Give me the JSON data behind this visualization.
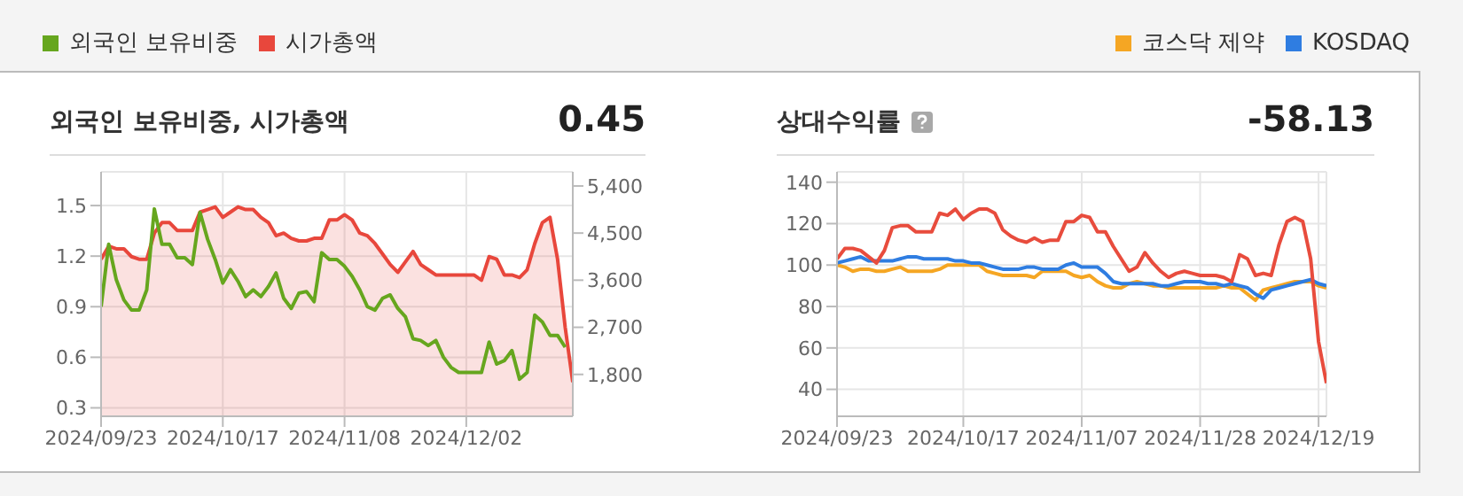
{
  "chart_data": [
    {
      "type": "line",
      "title": "외국인 보유비중, 시가총액",
      "annotations": [
        "0.45"
      ],
      "categories": [
        "2024/09/23",
        null,
        null,
        null,
        null,
        null,
        null,
        null,
        null,
        null,
        null,
        null,
        null,
        null,
        null,
        null,
        "2024/10/17",
        null,
        null,
        null,
        null,
        null,
        null,
        null,
        null,
        null,
        null,
        null,
        null,
        null,
        null,
        null,
        "2024/11/08",
        null,
        null,
        null,
        null,
        null,
        null,
        null,
        null,
        null,
        null,
        null,
        null,
        null,
        null,
        null,
        "2024/12/02",
        null,
        null,
        null,
        null,
        null,
        null,
        null,
        null,
        null,
        null,
        null,
        null,
        null,
        null
      ],
      "series": [
        {
          "name": "외국인 보유비중",
          "color": "#66a61e",
          "values": [
            0.9,
            1.27,
            1.06,
            0.94,
            0.88,
            0.88,
            1.0,
            1.48,
            1.27,
            1.27,
            1.19,
            1.19,
            1.15,
            1.46,
            1.3,
            1.18,
            1.04,
            1.12,
            1.05,
            0.96,
            1.0,
            0.96,
            1.02,
            1.1,
            0.95,
            0.89,
            0.98,
            0.99,
            0.93,
            1.22,
            1.18,
            1.18,
            1.14,
            1.08,
            1.0,
            0.9,
            0.88,
            0.95,
            0.97,
            0.89,
            0.84,
            0.71,
            0.7,
            0.67,
            0.7,
            0.6,
            0.54,
            0.51,
            0.51,
            0.51,
            0.51,
            0.69,
            0.56,
            0.58,
            0.64,
            0.47,
            0.51,
            0.85,
            0.81,
            0.73,
            0.73,
            0.66,
            null
          ]
        },
        {
          "name": "시가총액",
          "type": "area",
          "axis": "y2",
          "color": "#e8473c",
          "values": [
            4000,
            4250,
            4200,
            4200,
            4050,
            4000,
            4000,
            4500,
            4700,
            4700,
            4550,
            4550,
            4550,
            4900,
            4950,
            5000,
            4800,
            4900,
            5000,
            4950,
            4950,
            4800,
            4700,
            4450,
            4500,
            4400,
            4350,
            4350,
            4400,
            4400,
            4750,
            4750,
            4850,
            4750,
            4500,
            4450,
            4300,
            4100,
            3900,
            3750,
            3950,
            4150,
            3900,
            3800,
            3700,
            3700,
            3700,
            3700,
            3700,
            3700,
            3600,
            4050,
            4000,
            3700,
            3700,
            3650,
            3800,
            4300,
            4700,
            4800,
            4000,
            2700,
            1650
          ]
        }
      ],
      "ylim": [
        0.25,
        1.7
      ],
      "yticks": [
        0.3,
        0.6,
        0.9,
        1.2,
        1.5
      ],
      "y2lim": [
        1000,
        5670
      ],
      "y2ticks": [
        {
          "value": 1800,
          "label": "1,800"
        },
        {
          "value": 2700,
          "label": "2,700"
        },
        {
          "value": 3600,
          "label": "3,600"
        },
        {
          "value": 4500,
          "label": "4,500"
        },
        {
          "value": 5400,
          "label": "5,400"
        }
      ],
      "grid": true,
      "legend": "top left",
      "marker": "none"
    },
    {
      "type": "line",
      "title": "상대수익률",
      "annotations": [
        "-58.13"
      ],
      "categories": [
        "2024/09/23",
        null,
        null,
        null,
        null,
        null,
        null,
        null,
        null,
        null,
        null,
        null,
        null,
        null,
        null,
        null,
        "2024/10/17",
        null,
        null,
        null,
        null,
        null,
        null,
        null,
        null,
        null,
        null,
        null,
        null,
        null,
        null,
        "2024/11/07",
        null,
        null,
        null,
        null,
        null,
        null,
        null,
        null,
        null,
        null,
        null,
        null,
        null,
        null,
        "2024/11/28",
        null,
        null,
        null,
        null,
        null,
        null,
        null,
        null,
        null,
        null,
        null,
        null,
        null,
        null,
        "2024/12/19",
        null
      ],
      "series": [
        {
          "name": "코스닥 제약",
          "color": "#f5a623",
          "values": [
            100,
            99,
            97,
            98,
            98,
            97,
            97,
            98,
            99,
            97,
            97,
            97,
            97,
            98,
            100,
            100,
            100,
            100,
            100,
            97,
            96,
            95,
            95,
            95,
            95,
            94,
            97,
            97,
            97,
            97,
            95,
            94,
            95,
            92,
            90,
            89,
            89,
            91,
            92,
            91,
            90,
            90,
            89,
            89,
            89,
            89,
            89,
            89,
            89,
            90,
            89,
            89,
            86,
            83,
            88,
            89,
            90,
            91,
            92,
            92,
            92,
            90,
            89
          ]
        },
        {
          "name": "KOSDAQ",
          "color": "#2f7de1",
          "values": [
            101,
            102,
            103,
            104,
            102,
            102,
            102,
            102,
            103,
            104,
            104,
            103,
            103,
            103,
            103,
            102,
            102,
            101,
            101,
            100,
            99,
            98,
            98,
            98,
            99,
            99,
            98,
            98,
            98,
            100,
            101,
            99,
            99,
            99,
            96,
            92,
            91,
            91,
            91,
            91,
            91,
            90,
            90,
            91,
            92,
            92,
            92,
            91,
            91,
            90,
            91,
            90,
            89,
            86,
            84,
            88,
            89,
            90,
            91,
            92,
            93,
            91,
            90
          ]
        },
        {
          "color": "#e84c3d",
          "values": [
            103,
            108,
            108,
            107,
            104,
            101,
            107,
            118,
            119,
            119,
            116,
            116,
            116,
            125,
            124,
            127,
            122,
            125,
            127,
            127,
            125,
            117,
            114,
            112,
            111,
            113,
            111,
            112,
            112,
            121,
            121,
            124,
            123,
            116,
            116,
            109,
            103,
            97,
            99,
            106,
            101,
            97,
            94,
            96,
            97,
            96,
            95,
            95,
            95,
            94,
            92,
            105,
            103,
            95,
            96,
            95,
            110,
            121,
            123,
            121,
            103,
            63,
            43
          ]
        }
      ],
      "ylim": [
        27,
        145
      ],
      "yticks": [
        40,
        60,
        80,
        100,
        120,
        140
      ],
      "grid": true,
      "legend": "top right",
      "marker": "none"
    }
  ]
}
